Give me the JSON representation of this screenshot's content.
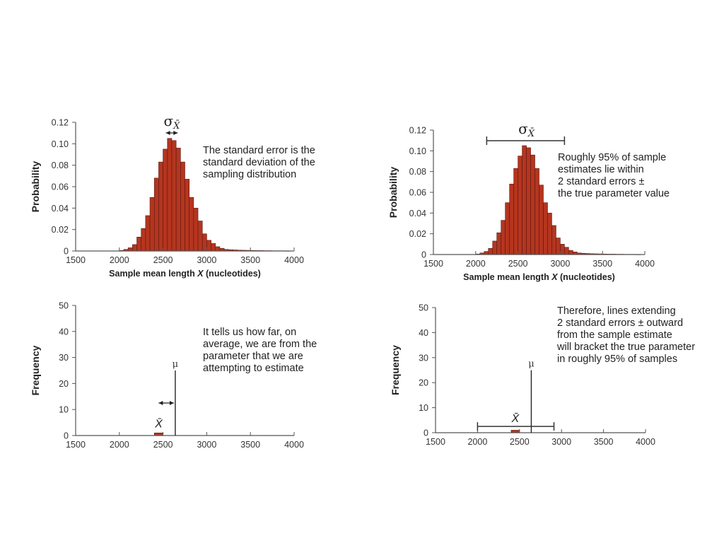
{
  "chart_data": [
    {
      "id": "top-left",
      "type": "bar",
      "title": "",
      "xlabel": "Sample mean length X (nucleotides)",
      "xlabel_prefix": "Sample mean length ",
      "xlabel_var": "X",
      "xlabel_suffix": " (nucleotides)",
      "ylabel": "Probability",
      "xlim": [
        1500,
        4000
      ],
      "ylim": [
        0,
        0.12
      ],
      "xticks": [
        "1500",
        "2000",
        "2500",
        "3000",
        "3500",
        "4000"
      ],
      "yticks": [
        "0",
        "0.02",
        "0.04",
        "0.06",
        "0.08",
        "0.10",
        "0.12"
      ],
      "bin_width": 50,
      "bins": [
        2000,
        2050,
        2100,
        2150,
        2200,
        2250,
        2300,
        2350,
        2400,
        2450,
        2500,
        2550,
        2600,
        2650,
        2700,
        2750,
        2800,
        2850,
        2900,
        2950,
        3000,
        3050,
        3100,
        3150,
        3200,
        3250,
        3300,
        3350,
        3400,
        3450,
        3500,
        3550,
        3600,
        3650,
        3700,
        3750,
        3800,
        3850,
        3900
      ],
      "values": [
        0.0005,
        0.0015,
        0.003,
        0.006,
        0.013,
        0.021,
        0.033,
        0.05,
        0.068,
        0.083,
        0.095,
        0.105,
        0.103,
        0.096,
        0.083,
        0.067,
        0.05,
        0.04,
        0.028,
        0.016,
        0.01,
        0.007,
        0.004,
        0.0025,
        0.0015,
        0.0012,
        0.001,
        0.0008,
        0.0007,
        0.0006,
        0.0005,
        0.0004,
        0.0004,
        0.0003,
        0.0003,
        0.0002,
        0.0002,
        0.0002,
        0.0001
      ],
      "annotation_symbol": "σ",
      "annotation_sub": "X̄",
      "se_arrow_range": [
        2500,
        2700
      ],
      "note": "The standard error is the\nstandard deviation of the\nsampling distribution"
    },
    {
      "id": "top-right",
      "type": "bar",
      "title": "",
      "xlabel": "Sample mean length X (nucleotides)",
      "xlabel_prefix": "Sample mean length ",
      "xlabel_var": "X",
      "xlabel_suffix": " (nucleotides)",
      "ylabel": "Probability",
      "xlim": [
        1500,
        4000
      ],
      "ylim": [
        0,
        0.12
      ],
      "xticks": [
        "1500",
        "2000",
        "2500",
        "3000",
        "3500",
        "4000"
      ],
      "yticks": [
        "0",
        "0.02",
        "0.04",
        "0.06",
        "0.08",
        "0.10",
        "0.12"
      ],
      "bin_width": 50,
      "bins": [
        2000,
        2050,
        2100,
        2150,
        2200,
        2250,
        2300,
        2350,
        2400,
        2450,
        2500,
        2550,
        2600,
        2650,
        2700,
        2750,
        2800,
        2850,
        2900,
        2950,
        3000,
        3050,
        3100,
        3150,
        3200,
        3250,
        3300,
        3350,
        3400,
        3450,
        3500,
        3550,
        3600,
        3650,
        3700,
        3750,
        3800,
        3850,
        3900
      ],
      "values": [
        0.0005,
        0.0015,
        0.003,
        0.006,
        0.013,
        0.021,
        0.033,
        0.05,
        0.068,
        0.083,
        0.095,
        0.105,
        0.103,
        0.096,
        0.083,
        0.067,
        0.05,
        0.04,
        0.028,
        0.016,
        0.01,
        0.007,
        0.004,
        0.0025,
        0.0015,
        0.0012,
        0.001,
        0.0008,
        0.0007,
        0.0006,
        0.0005,
        0.0004,
        0.0004,
        0.0003,
        0.0003,
        0.0002,
        0.0002,
        0.0002,
        0.0001
      ],
      "annotation_symbol": "σ",
      "annotation_sub": "X̄",
      "two_se_range": [
        2130,
        3050
      ],
      "note": "Roughly 95% of sample\nestimates lie within\n2 standard errors ±\nthe true parameter value"
    },
    {
      "id": "bottom-left",
      "type": "bar",
      "title": "",
      "xlabel": "",
      "ylabel": "Frequency",
      "xlim": [
        1500,
        4000
      ],
      "ylim": [
        0,
        50
      ],
      "xticks": [
        "1500",
        "2000",
        "2500",
        "3000",
        "3500",
        "4000"
      ],
      "yticks": [
        "0",
        "10",
        "20",
        "30",
        "40",
        "50"
      ],
      "sample_bar": {
        "x_start": 2400,
        "x_end": 2500,
        "value": 1
      },
      "mu": 2640,
      "mu_label": "μ",
      "mu_line_height": 25,
      "xbar_label": "X̄",
      "arrow_range": [
        2450,
        2640
      ],
      "arrow_y": 12.5,
      "note": "It tells us how far, on\naverage, we are from the\nparameter that we are\nattempting to estimate"
    },
    {
      "id": "bottom-right",
      "type": "bar",
      "title": "",
      "xlabel": "",
      "ylabel": "Frequency",
      "xlim": [
        1500,
        4000
      ],
      "ylim": [
        0,
        50
      ],
      "xticks": [
        "1500",
        "2000",
        "2500",
        "3000",
        "3500",
        "4000"
      ],
      "yticks": [
        "0",
        "10",
        "20",
        "30",
        "40",
        "50"
      ],
      "sample_bar": {
        "x_start": 2400,
        "x_end": 2500,
        "value": 1
      },
      "mu": 2640,
      "mu_label": "μ",
      "mu_line_height": 25,
      "xbar_label": "X̄",
      "ci_range": [
        2000,
        2910
      ],
      "ci_y": 2.5,
      "note": "Therefore, lines extending\n2 standard errors ± outward\nfrom the sample estimate\nwill bracket the true parameter\nin roughly 95% of samples"
    }
  ],
  "colors": {
    "bar_fill": "#b5351f",
    "bar_stroke": "#5a1a10",
    "axis": "#555555",
    "text": "#222222"
  }
}
